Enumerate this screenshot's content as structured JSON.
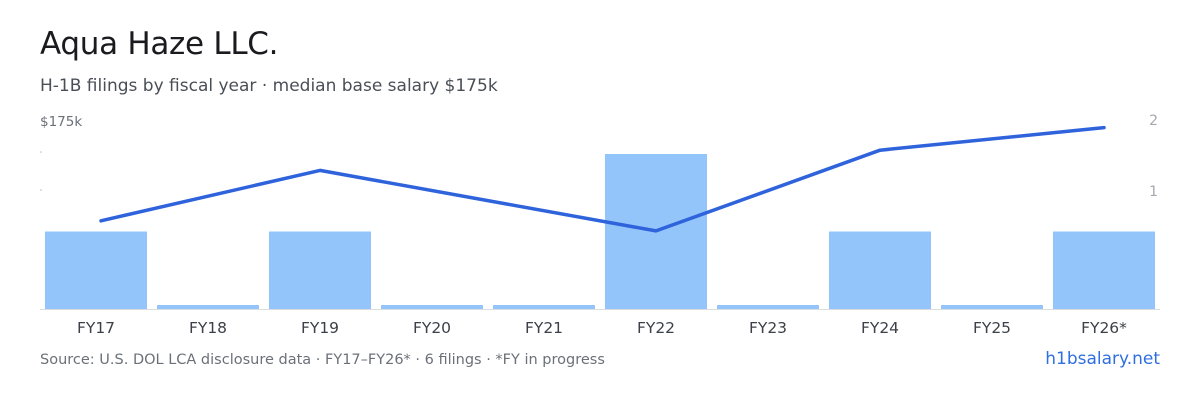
{
  "header": {
    "title": "Aqua Haze LLC.",
    "subtitle": "H-1B filings by fiscal year · median base salary $175k"
  },
  "chart_data": {
    "type": "bar",
    "categories": [
      "FY17",
      "FY18",
      "FY19",
      "FY20",
      "FY21",
      "FY22",
      "FY23",
      "FY24",
      "FY25",
      "FY26*"
    ],
    "series": [
      {
        "type": "bar",
        "axis": "right",
        "values": [
          1,
          0,
          1,
          0,
          0,
          2,
          0,
          1,
          0,
          1
        ]
      },
      {
        "type": "line",
        "axis": "left",
        "values": [
          160,
          170,
          180,
          172,
          164,
          156,
          172,
          188,
          193,
          197
        ]
      }
    ],
    "y_left_tick_label": "$175k",
    "y_right_ticks": [
      "2",
      "1"
    ],
    "y_right_range": [
      0,
      2
    ],
    "y_left_range": [
      125,
      200
    ],
    "legend": "none",
    "grid": false,
    "colors": {
      "bar": "#93c5fb",
      "line": "#2f63dc",
      "axis": "#d9dce1",
      "tick_text": "#6b7079",
      "cat_text": "#3c4048"
    }
  },
  "footer": {
    "source": "Source: U.S. DOL LCA disclosure data · FY17–FY26* · 6 filings · *FY in progress",
    "site": "h1bsalary.net"
  }
}
